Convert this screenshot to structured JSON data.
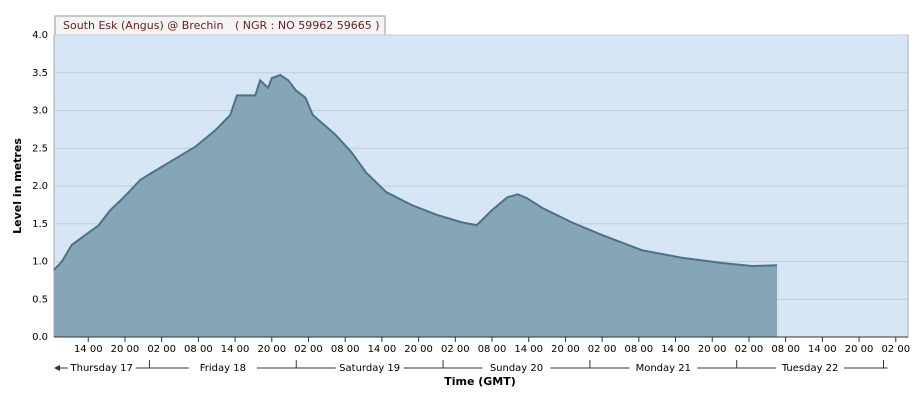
{
  "chart_data": {
    "type": "area",
    "title": "South Esk (Angus) @ Brechin",
    "subtitle": "( NGR : NO 59962 59665 )",
    "y_label": "Level in metres",
    "x_label": "Time (GMT)",
    "x": [
      8.4,
      9.7,
      11.3,
      13.5,
      15.7,
      17.6,
      19.8,
      22.5,
      24.9,
      28,
      31.5,
      34.8,
      37.2,
      38.3,
      41.3,
      42.1,
      43.4,
      44,
      45.4,
      46.7,
      47.9,
      49.5,
      50.7,
      52,
      54.4,
      57,
      59.4,
      62.7,
      66.8,
      70.9,
      75,
      77.5,
      80,
      82.5,
      84.2,
      85.7,
      88.2,
      93,
      98,
      104.5,
      111,
      117.6,
      122.5,
      126.6
    ],
    "series": [
      {
        "color": "#86a6b8",
        "line_color": "#4c7288",
        "values": [
          0.89,
          1.0,
          1.22,
          1.35,
          1.48,
          1.68,
          1.85,
          2.08,
          2.2,
          2.35,
          2.52,
          2.74,
          2.94,
          3.2,
          3.2,
          3.4,
          3.3,
          3.43,
          3.47,
          3.4,
          3.27,
          3.17,
          2.94,
          2.85,
          2.68,
          2.45,
          2.18,
          1.92,
          1.75,
          1.62,
          1.52,
          1.48,
          1.68,
          1.85,
          1.89,
          1.84,
          1.71,
          1.52,
          1.35,
          1.15,
          1.05,
          0.98,
          0.94,
          0.95
        ]
      }
    ],
    "xlim": [
      8.4,
      148
    ],
    "ylim": [
      0,
      4
    ],
    "yticks": [
      {
        "value": 0,
        "label": "0.0"
      },
      {
        "value": 0.5,
        "label": "0.5"
      },
      {
        "value": 1,
        "label": "1.0"
      },
      {
        "value": 1.5,
        "label": "1.5"
      },
      {
        "value": 2,
        "label": "2.0"
      },
      {
        "value": 2.5,
        "label": "2.5"
      },
      {
        "value": 3,
        "label": "3.0"
      },
      {
        "value": 3.5,
        "label": "3.5"
      },
      {
        "value": 4,
        "label": "4.0"
      }
    ],
    "xticks": [
      {
        "value": 14,
        "label": "14 00"
      },
      {
        "value": 20,
        "label": "20 00"
      },
      {
        "value": 26,
        "label": "02 00"
      },
      {
        "value": 32,
        "label": "08 00"
      },
      {
        "value": 38,
        "label": "14 00"
      },
      {
        "value": 44,
        "label": "20 00"
      },
      {
        "value": 50,
        "label": "02 00"
      },
      {
        "value": 56,
        "label": "08 00"
      },
      {
        "value": 62,
        "label": "14 00"
      },
      {
        "value": 68,
        "label": "20 00"
      },
      {
        "value": 74,
        "label": "02 00"
      },
      {
        "value": 80,
        "label": "08 00"
      },
      {
        "value": 86,
        "label": "14 00"
      },
      {
        "value": 92,
        "label": "20 00"
      },
      {
        "value": 98,
        "label": "02 00"
      },
      {
        "value": 104,
        "label": "08 00"
      },
      {
        "value": 110,
        "label": "14 00"
      },
      {
        "value": 116,
        "label": "20 00"
      },
      {
        "value": 122,
        "label": "02 00"
      },
      {
        "value": 128,
        "label": "08 00"
      },
      {
        "value": 134,
        "label": "14 00"
      },
      {
        "value": 140,
        "label": "20 00"
      },
      {
        "value": 146,
        "label": "02 00"
      }
    ],
    "day_labels": [
      {
        "value": 12,
        "label": "Thursday 17"
      },
      {
        "value": 36,
        "label": "Friday 18"
      },
      {
        "value": 60,
        "label": "Saturday 19"
      },
      {
        "value": 84,
        "label": "Sunday 20"
      },
      {
        "value": 108,
        "label": "Monday 21"
      },
      {
        "value": 132,
        "label": "Tuesday 22"
      }
    ],
    "grid": true,
    "background": "#d6e6f5"
  }
}
